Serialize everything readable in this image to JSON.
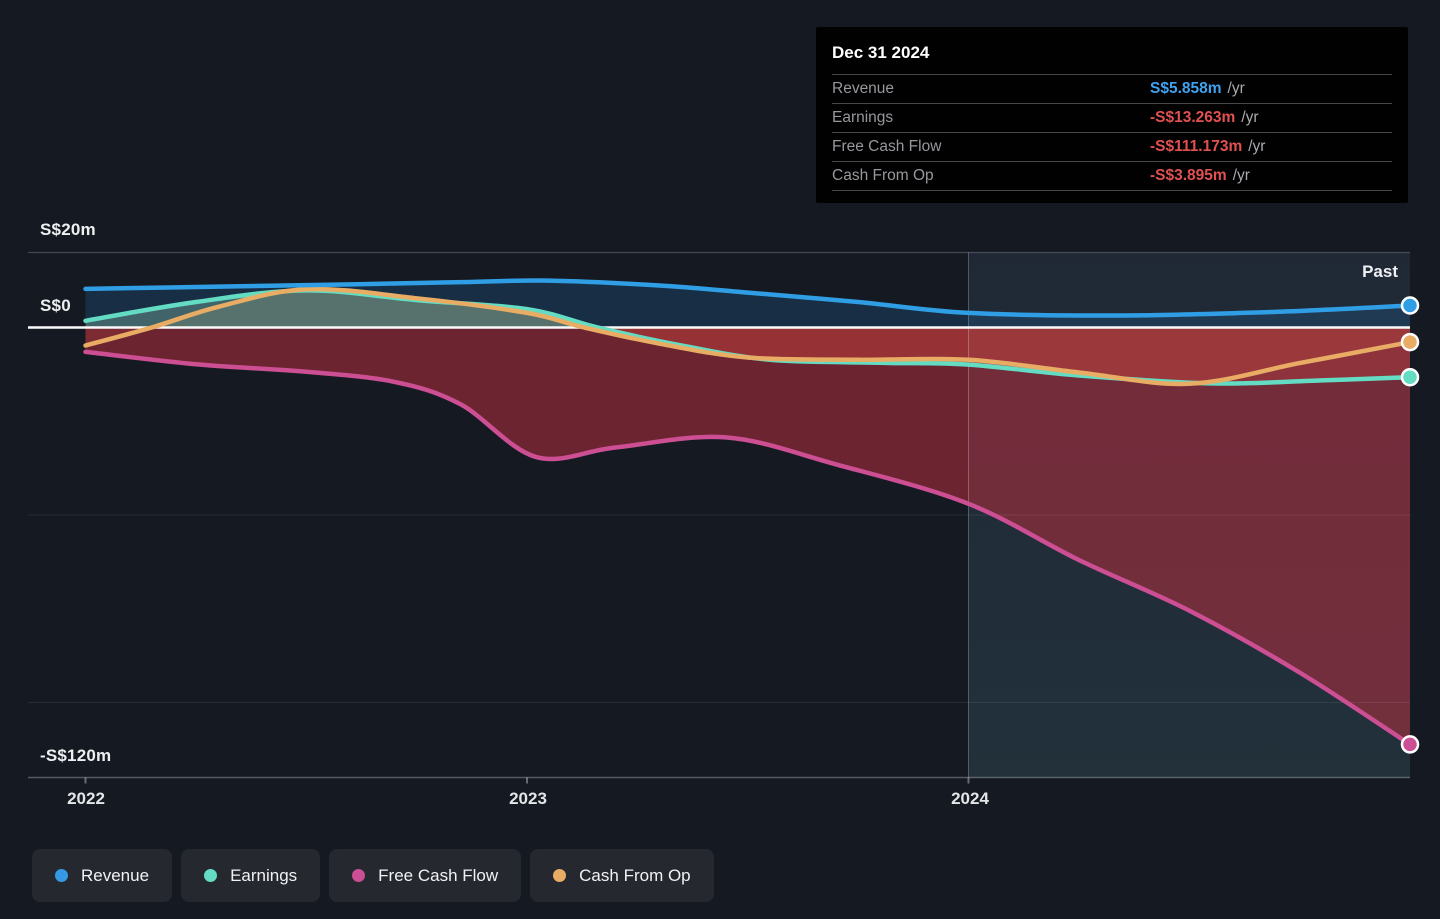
{
  "tooltip": {
    "title": "Dec 31 2024",
    "rows": [
      {
        "label": "Revenue",
        "value": "S$5.858m",
        "suffix": "/yr",
        "color": "#3fa2f0"
      },
      {
        "label": "Earnings",
        "value": "-S$13.263m",
        "suffix": "/yr",
        "color": "#e25151"
      },
      {
        "label": "Free Cash Flow",
        "value": "-S$111.173m",
        "suffix": "/yr",
        "color": "#e25151"
      },
      {
        "label": "Cash From Op",
        "value": "-S$3.895m",
        "suffix": "/yr",
        "color": "#e25151"
      }
    ]
  },
  "axis": {
    "y_labels": [
      "S$20m",
      "S$0",
      "-S$120m"
    ],
    "x_labels": [
      "2022",
      "2023",
      "2024"
    ],
    "past_label": "Past"
  },
  "legend": {
    "items": [
      {
        "label": "Revenue",
        "color": "#359ae3"
      },
      {
        "label": "Earnings",
        "color": "#63dcc3"
      },
      {
        "label": "Free Cash Flow",
        "color": "#cc4e93"
      },
      {
        "label": "Cash From Op",
        "color": "#e8ac64"
      }
    ]
  },
  "chart_data": {
    "type": "area",
    "title": "",
    "unit": "S$ millions per year",
    "x_axis": {
      "labels": [
        "2022",
        "2023",
        "2024"
      ],
      "range": [
        2022,
        2025
      ]
    },
    "y_axis": {
      "tick_labels": [
        "S$20m",
        "S$0",
        "-S$120m"
      ],
      "range_m": [
        -120,
        20
      ],
      "gridlines_m": [
        20,
        0,
        -50,
        -100,
        -120
      ]
    },
    "past_divider_x": 2024,
    "past_region_label": "Past",
    "tooltip_point": {
      "date": "Dec 31 2024",
      "revenue_m": 5.858,
      "earnings_m": -13.263,
      "free_cash_flow_m": -111.173,
      "cash_from_op_m": -3.895
    },
    "series": [
      {
        "name": "Revenue",
        "color": "#2f9ee5",
        "fill_positive": "rgba(36,120,190,0.22)",
        "fill_negative": null,
        "points": [
          [
            2022,
            10.3
          ],
          [
            2022.3,
            10.9
          ],
          [
            2022.6,
            11.5
          ],
          [
            2022.85,
            12.1
          ],
          [
            2023.05,
            12.5
          ],
          [
            2023.3,
            11.2
          ],
          [
            2023.5,
            9.3
          ],
          [
            2023.75,
            6.8
          ],
          [
            2024,
            3.9
          ],
          [
            2024.35,
            3.2
          ],
          [
            2024.7,
            4.2
          ],
          [
            2025,
            5.858
          ]
        ]
      },
      {
        "name": "Free Cash Flow",
        "color": "#cc4e93",
        "fill_positive": null,
        "fill_negative": "rgba(196,45,62,0.50)",
        "points": [
          [
            2022,
            -6.5
          ],
          [
            2022.25,
            -9.8
          ],
          [
            2022.5,
            -11.8
          ],
          [
            2022.7,
            -14.5
          ],
          [
            2022.85,
            -20.5
          ],
          [
            2023.02,
            -34.5
          ],
          [
            2023.2,
            -32
          ],
          [
            2023.45,
            -29.3
          ],
          [
            2023.7,
            -36.5
          ],
          [
            2024,
            -47
          ],
          [
            2024.25,
            -62
          ],
          [
            2024.5,
            -75.5
          ],
          [
            2024.75,
            -92
          ],
          [
            2025,
            -111.173
          ]
        ]
      },
      {
        "name": "Cash From Op",
        "color": "#e8ac64",
        "fill_positive": "rgba(235,180,105,0.16)",
        "fill_negative": "rgba(230,90,70,0.15)",
        "points": [
          [
            2022,
            -4.8
          ],
          [
            2022.15,
            0
          ],
          [
            2022.3,
            5.5
          ],
          [
            2022.5,
            10.2
          ],
          [
            2022.75,
            7.8
          ],
          [
            2023,
            3.9
          ],
          [
            2023.13,
            0
          ],
          [
            2023.3,
            -4.3
          ],
          [
            2023.5,
            -8.0
          ],
          [
            2023.75,
            -8.6
          ],
          [
            2024,
            -8.6
          ],
          [
            2024.25,
            -12.0
          ],
          [
            2024.5,
            -15.0
          ],
          [
            2024.75,
            -9.5
          ],
          [
            2025,
            -3.895
          ]
        ]
      },
      {
        "name": "Earnings",
        "color": "#63dcc3",
        "fill_positive": "rgba(150,215,185,0.32)",
        "fill_negative": "rgba(225,75,65,0.26)",
        "points": [
          [
            2022,
            1.8
          ],
          [
            2022.25,
            6.8
          ],
          [
            2022.5,
            9.9
          ],
          [
            2022.75,
            7.3
          ],
          [
            2023,
            4.9
          ],
          [
            2023.16,
            0
          ],
          [
            2023.35,
            -4.8
          ],
          [
            2023.55,
            -8.6
          ],
          [
            2023.8,
            -9.4
          ],
          [
            2024,
            -9.9
          ],
          [
            2024.25,
            -12.8
          ],
          [
            2024.55,
            -14.9
          ],
          [
            2024.8,
            -14.1
          ],
          [
            2025,
            -13.263
          ]
        ]
      }
    ]
  }
}
